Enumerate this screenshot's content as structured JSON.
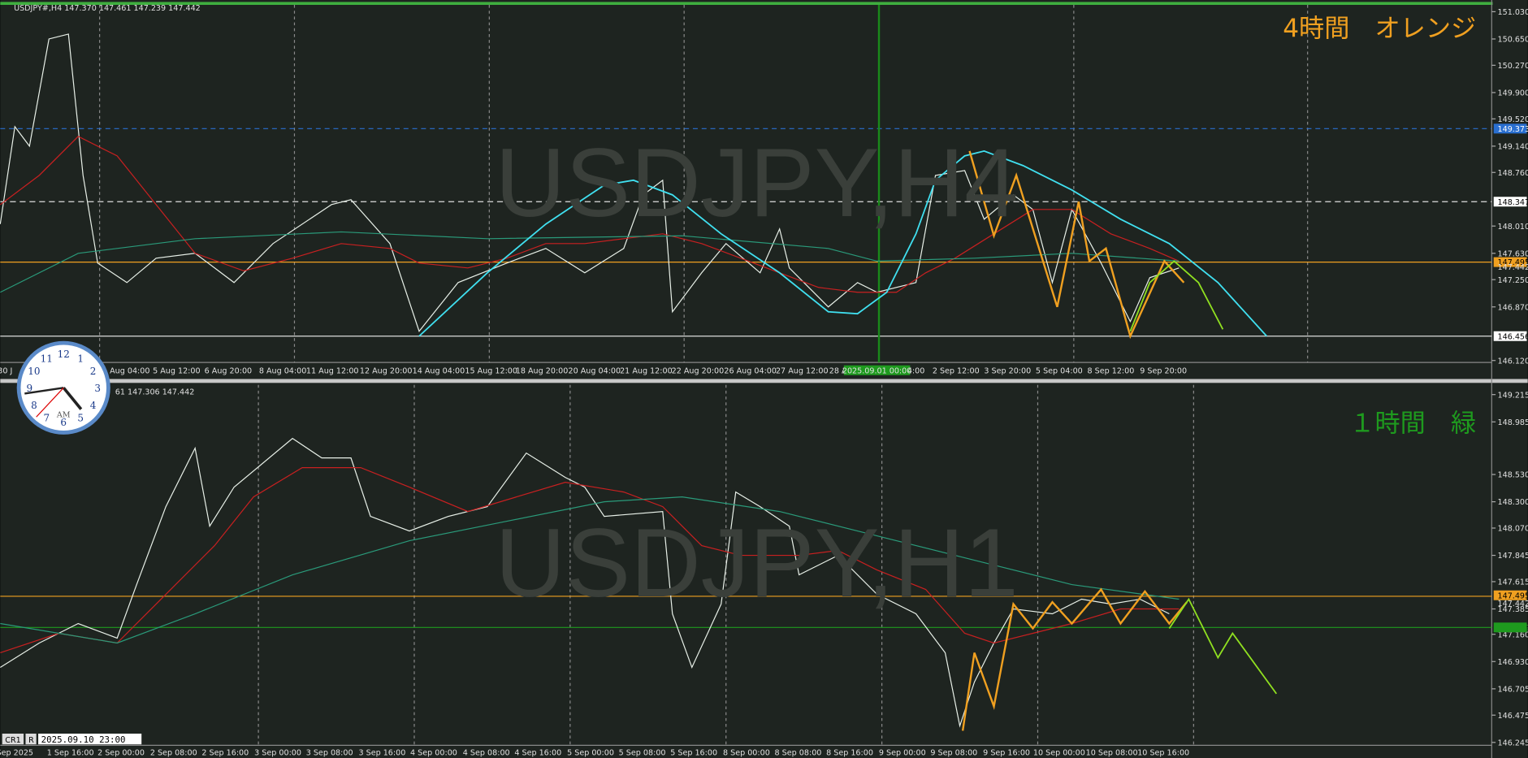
{
  "panels": [
    {
      "header": "USDJPY#,H4  147.370 147.461 147.239 147.442",
      "watermark": "USDJPY,H4",
      "note": "4時間　オレンジ",
      "price_ticks": [
        "151.030",
        "150.650",
        "150.270",
        "149.900",
        "149.520",
        "149.140",
        "148.760",
        "148.010",
        "147.630",
        "147.250",
        "146.870",
        "146.120"
      ],
      "price_markers": [
        "149.373",
        "148.347",
        "147.495",
        "147.442",
        "146.456"
      ],
      "time_labels": [
        "30 J",
        "Aug 04:00",
        "5 Aug 12:00",
        "6 Aug 20:00",
        "8 Aug 04:00",
        "11 Aug 12:00",
        "12 Aug 20:00",
        "14 Aug 04:00",
        "15 Aug 12:00",
        "18 Aug 20:00",
        "20 Aug 04:00",
        "21 Aug 12:00",
        "22 Aug 20:00",
        "26 Aug 04:00",
        "27 Aug 12:00",
        "28 A",
        "2025.09.01 00:00",
        "4:00",
        "2 Sep 12:00",
        "3 Sep 20:00",
        "5 Sep 04:00",
        "8 Sep 12:00",
        "9 Sep 20:00"
      ]
    },
    {
      "header": "61 147.306 147.442",
      "watermark": "USDJPY,H1",
      "note": "１時間　緑",
      "price_ticks": [
        "149.215",
        "148.985",
        "148.530",
        "148.300",
        "148.070",
        "147.845",
        "147.615",
        "147.385",
        "147.160",
        "146.930",
        "146.705",
        "146.475",
        "146.245"
      ],
      "price_markers": [
        "147.495",
        "147.442",
        "147.229"
      ],
      "time_labels": [
        "Sep 2025",
        "1 Sep 16:00",
        "2 Sep 00:00",
        "2 Sep 08:00",
        "2 Sep 16:00",
        "3 Sep 00:00",
        "3 Sep 08:00",
        "3 Sep 16:00",
        "4 Sep 00:00",
        "4 Sep 08:00",
        "4 Sep 16:00",
        "5 Sep 00:00",
        "5 Sep 08:00",
        "5 Sep 16:00",
        "8 Sep 00:00",
        "8 Sep 08:00",
        "8 Sep 16:00",
        "9 Sep 00:00",
        "9 Sep 08:00",
        "9 Sep 16:00",
        "10 Sep 00:00",
        "10 Sep 08:00",
        "10 Sep 16:00"
      ]
    }
  ],
  "status": {
    "tab1": "CR1",
    "tab2": "R",
    "time": "2025.09.10 23:00"
  },
  "clock": {
    "numerals": [
      "12",
      "1",
      "2",
      "3",
      "4",
      "5",
      "6",
      "7",
      "8",
      "9",
      "10",
      "11"
    ],
    "meridiem": "AM"
  }
}
